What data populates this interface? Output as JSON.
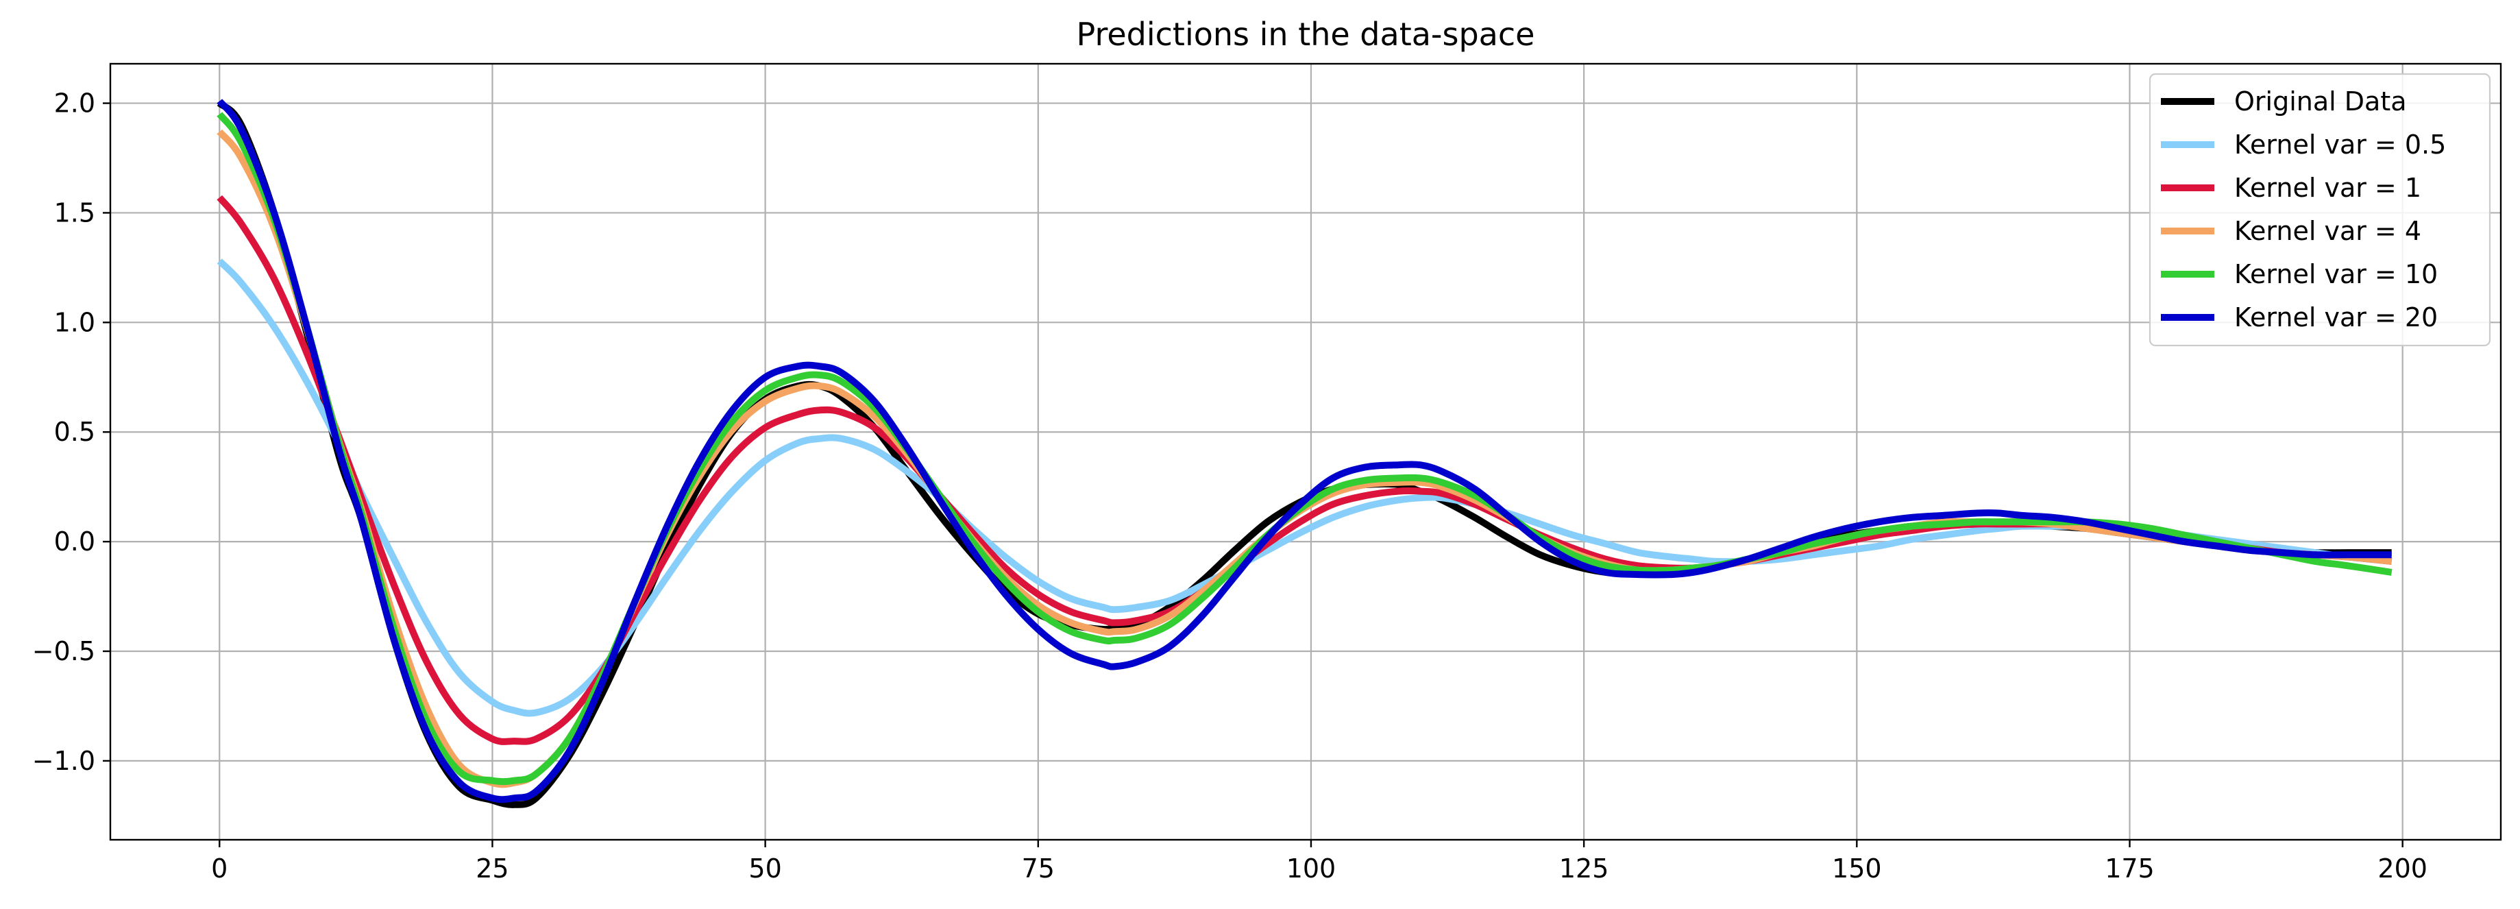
{
  "chart_data": {
    "type": "line",
    "title": "Predictions in the data-space",
    "xlabel": "",
    "ylabel": "",
    "xlim": [
      -10,
      209
    ],
    "ylim": [
      -1.36,
      2.18
    ],
    "xticks": [
      0,
      25,
      50,
      75,
      100,
      125,
      150,
      175,
      200
    ],
    "xtick_labels": [
      "0",
      "25",
      "50",
      "75",
      "100",
      "125",
      "150",
      "175",
      "200"
    ],
    "yticks": [
      2.0,
      1.5,
      1.0,
      0.5,
      0.0,
      -0.5,
      -1.0
    ],
    "ytick_labels": [
      "2.0",
      "1.5",
      "1.0",
      "0.5",
      "0.0",
      "−0.5",
      "−1.0"
    ],
    "grid": true,
    "legend_position": "top-right",
    "x": [
      0,
      2,
      5,
      8,
      11,
      13,
      16,
      19,
      22,
      25,
      27,
      29,
      32,
      35,
      38,
      41,
      44,
      47,
      50,
      53,
      55,
      57,
      60,
      63,
      66,
      69,
      72,
      75,
      78,
      81,
      82,
      84,
      87,
      90,
      93,
      96,
      99,
      102,
      105,
      108,
      110,
      112,
      115,
      118,
      121,
      124,
      127,
      130,
      133,
      135,
      137,
      140,
      143,
      146,
      149,
      152,
      155,
      158,
      161,
      163,
      165,
      168,
      171,
      174,
      177,
      180,
      183,
      186,
      189,
      192,
      195,
      199
    ],
    "series": [
      {
        "name": "Original Data",
        "color": "#000000",
        "width": 10,
        "values": [
          2.0,
          1.9,
          1.5,
          0.95,
          0.38,
          0.1,
          -0.45,
          -0.88,
          -1.12,
          -1.18,
          -1.2,
          -1.17,
          -0.98,
          -0.7,
          -0.38,
          -0.04,
          0.26,
          0.5,
          0.65,
          0.71,
          0.71,
          0.66,
          0.52,
          0.32,
          0.12,
          -0.06,
          -0.22,
          -0.33,
          -0.38,
          -0.4,
          -0.39,
          -0.38,
          -0.3,
          -0.18,
          -0.04,
          0.09,
          0.18,
          0.24,
          0.26,
          0.26,
          0.23,
          0.19,
          0.11,
          0.02,
          -0.06,
          -0.11,
          -0.14,
          -0.145,
          -0.14,
          -0.13,
          -0.11,
          -0.08,
          -0.04,
          0.0,
          0.03,
          0.05,
          0.07,
          0.075,
          0.08,
          0.08,
          0.08,
          0.07,
          0.06,
          0.04,
          0.02,
          0.0,
          -0.02,
          -0.03,
          -0.04,
          -0.05,
          -0.05,
          -0.05
        ]
      },
      {
        "name": "Kernel var = 0.5",
        "color": "#87CEFA",
        "width": 10,
        "values": [
          1.28,
          1.18,
          0.98,
          0.73,
          0.44,
          0.22,
          -0.08,
          -0.37,
          -0.6,
          -0.73,
          -0.77,
          -0.78,
          -0.72,
          -0.58,
          -0.38,
          -0.16,
          0.05,
          0.23,
          0.37,
          0.45,
          0.47,
          0.47,
          0.42,
          0.32,
          0.2,
          0.06,
          -0.07,
          -0.18,
          -0.26,
          -0.3,
          -0.31,
          -0.3,
          -0.27,
          -0.2,
          -0.12,
          -0.04,
          0.04,
          0.11,
          0.16,
          0.19,
          0.2,
          0.2,
          0.17,
          0.13,
          0.08,
          0.03,
          -0.01,
          -0.05,
          -0.07,
          -0.08,
          -0.09,
          -0.09,
          -0.08,
          -0.06,
          -0.04,
          -0.02,
          0.01,
          0.03,
          0.05,
          0.06,
          0.07,
          0.07,
          0.07,
          0.06,
          0.05,
          0.03,
          0.01,
          -0.01,
          -0.03,
          -0.05,
          -0.07,
          -0.09
        ]
      },
      {
        "name": "Kernel var = 1",
        "color": "#DC143C",
        "width": 10,
        "values": [
          1.57,
          1.45,
          1.2,
          0.86,
          0.47,
          0.2,
          -0.2,
          -0.55,
          -0.79,
          -0.9,
          -0.91,
          -0.9,
          -0.8,
          -0.6,
          -0.33,
          -0.06,
          0.19,
          0.39,
          0.52,
          0.58,
          0.6,
          0.59,
          0.52,
          0.38,
          0.21,
          0.04,
          -0.12,
          -0.24,
          -0.32,
          -0.36,
          -0.37,
          -0.36,
          -0.32,
          -0.23,
          -0.12,
          -0.01,
          0.09,
          0.17,
          0.21,
          0.23,
          0.23,
          0.22,
          0.17,
          0.1,
          0.03,
          -0.03,
          -0.08,
          -0.11,
          -0.12,
          -0.12,
          -0.11,
          -0.09,
          -0.06,
          -0.03,
          0.0,
          0.03,
          0.05,
          0.07,
          0.08,
          0.08,
          0.08,
          0.08,
          0.07,
          0.05,
          0.03,
          0.01,
          -0.01,
          -0.03,
          -0.05,
          -0.06,
          -0.07,
          -0.09
        ]
      },
      {
        "name": "Kernel var = 4",
        "color": "#F4A460",
        "width": 10,
        "values": [
          1.87,
          1.75,
          1.43,
          0.97,
          0.45,
          0.15,
          -0.35,
          -0.76,
          -1.02,
          -1.1,
          -1.1,
          -1.06,
          -0.9,
          -0.62,
          -0.29,
          0.03,
          0.3,
          0.51,
          0.64,
          0.7,
          0.71,
          0.68,
          0.57,
          0.4,
          0.2,
          0.01,
          -0.16,
          -0.29,
          -0.37,
          -0.41,
          -0.41,
          -0.4,
          -0.34,
          -0.23,
          -0.1,
          0.03,
          0.14,
          0.22,
          0.26,
          0.27,
          0.27,
          0.25,
          0.19,
          0.11,
          0.02,
          -0.05,
          -0.1,
          -0.13,
          -0.13,
          -0.12,
          -0.11,
          -0.09,
          -0.05,
          -0.02,
          0.02,
          0.05,
          0.07,
          0.09,
          0.09,
          0.09,
          0.09,
          0.08,
          0.06,
          0.04,
          0.02,
          0.0,
          -0.02,
          -0.04,
          -0.05,
          -0.06,
          -0.07,
          -0.09
        ]
      },
      {
        "name": "Kernel var = 10",
        "color": "#32CD32",
        "width": 10,
        "values": [
          1.95,
          1.82,
          1.47,
          0.98,
          0.44,
          0.13,
          -0.4,
          -0.82,
          -1.05,
          -1.09,
          -1.09,
          -1.06,
          -0.9,
          -0.62,
          -0.28,
          0.05,
          0.33,
          0.55,
          0.69,
          0.75,
          0.76,
          0.73,
          0.61,
          0.42,
          0.21,
          0.0,
          -0.18,
          -0.32,
          -0.41,
          -0.45,
          -0.45,
          -0.44,
          -0.38,
          -0.26,
          -0.12,
          0.03,
          0.15,
          0.24,
          0.28,
          0.29,
          0.29,
          0.27,
          0.21,
          0.12,
          0.02,
          -0.06,
          -0.11,
          -0.13,
          -0.13,
          -0.12,
          -0.11,
          -0.08,
          -0.05,
          -0.01,
          0.02,
          0.05,
          0.07,
          0.08,
          0.09,
          0.09,
          0.09,
          0.09,
          0.09,
          0.08,
          0.06,
          0.03,
          0.0,
          -0.03,
          -0.06,
          -0.09,
          -0.11,
          -0.14
        ]
      },
      {
        "name": "Kernel var = 20",
        "color": "#0000CD",
        "width": 10,
        "values": [
          2.01,
          1.88,
          1.5,
          0.98,
          0.41,
          0.1,
          -0.45,
          -0.87,
          -1.1,
          -1.17,
          -1.17,
          -1.14,
          -0.96,
          -0.65,
          -0.28,
          0.07,
          0.37,
          0.6,
          0.75,
          0.8,
          0.8,
          0.77,
          0.64,
          0.43,
          0.19,
          -0.04,
          -0.24,
          -0.4,
          -0.51,
          -0.56,
          -0.57,
          -0.55,
          -0.48,
          -0.34,
          -0.16,
          0.02,
          0.17,
          0.29,
          0.34,
          0.35,
          0.35,
          0.32,
          0.24,
          0.12,
          0.0,
          -0.09,
          -0.14,
          -0.15,
          -0.15,
          -0.14,
          -0.12,
          -0.08,
          -0.03,
          0.02,
          0.06,
          0.09,
          0.11,
          0.12,
          0.13,
          0.13,
          0.12,
          0.11,
          0.09,
          0.06,
          0.03,
          0.0,
          -0.02,
          -0.04,
          -0.05,
          -0.06,
          -0.06,
          -0.06
        ]
      }
    ]
  }
}
